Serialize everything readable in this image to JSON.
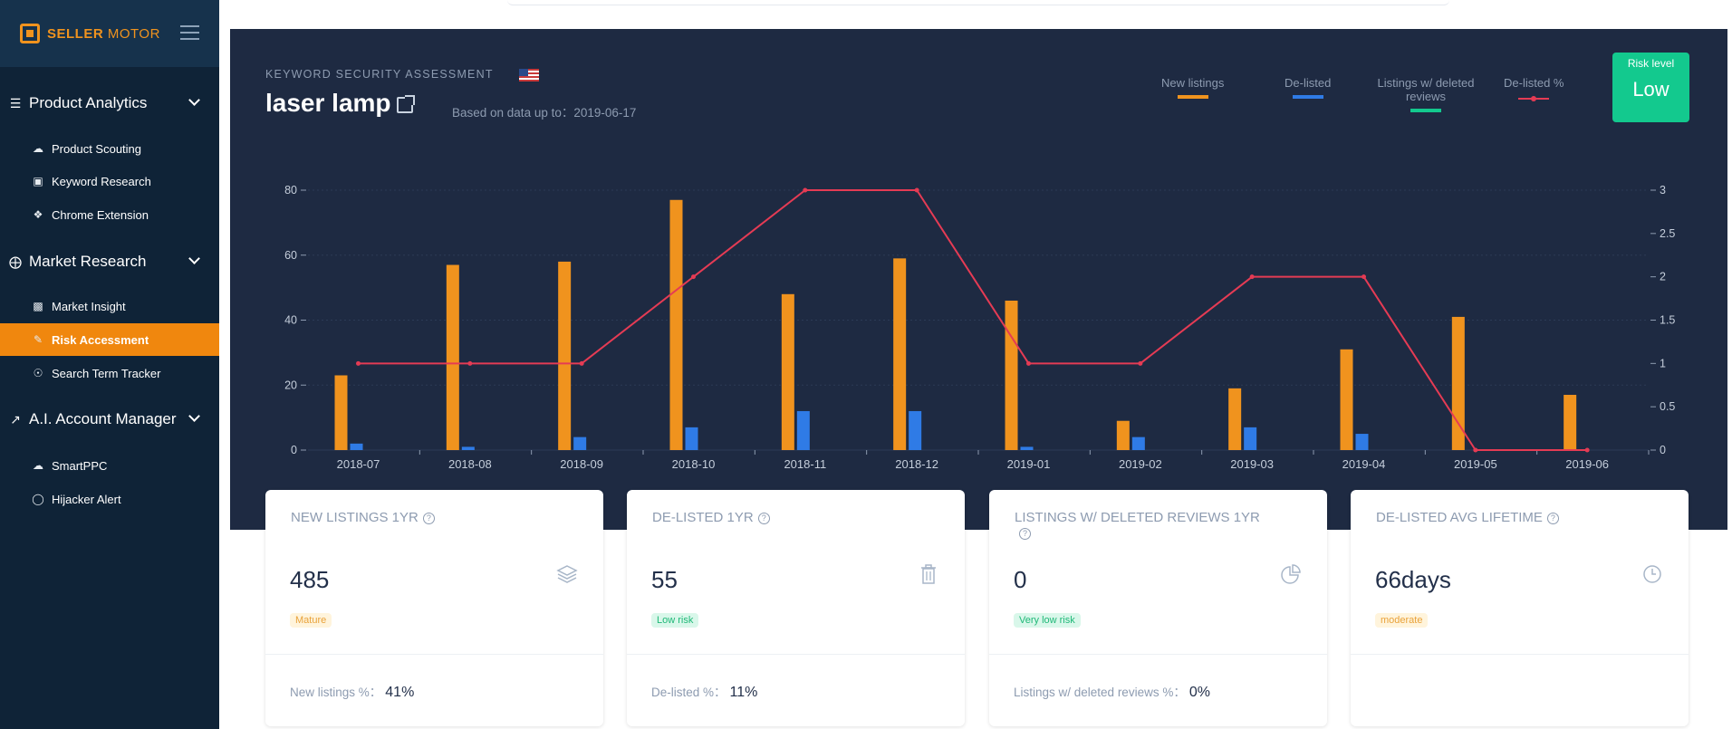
{
  "brand": {
    "name_part1": "SELLER",
    "name_part2": "MOTOR"
  },
  "sidebar": {
    "sections": [
      {
        "label": "Product Analytics",
        "icon": "list-search-icon",
        "items": [
          {
            "label": "Product Scouting",
            "icon": "cloud-search-icon"
          },
          {
            "label": "Keyword Research",
            "icon": "image-search-icon"
          },
          {
            "label": "Chrome Extension",
            "icon": "puzzle-icon"
          }
        ]
      },
      {
        "label": "Market Research",
        "icon": "compass-icon",
        "items": [
          {
            "label": "Market Insight",
            "icon": "bar-chart-icon"
          },
          {
            "label": "Risk Accessment",
            "icon": "edit-square-icon",
            "active": true
          },
          {
            "label": "Search Term Tracker",
            "icon": "tracker-icon"
          }
        ]
      },
      {
        "label": "A.I. Account Manager",
        "icon": "trend-up-icon",
        "items": [
          {
            "label": "SmartPPC",
            "icon": "cloud-icon"
          },
          {
            "label": "Hijacker Alert",
            "icon": "alert-icon"
          }
        ]
      }
    ]
  },
  "header": {
    "caption": "KEYWORD SECURITY ASSESSMENT",
    "keyword": "laser lamp",
    "based_on": "Based on data up to：2019-06-17"
  },
  "legend": [
    {
      "label": "New listings",
      "color": "#f0931e",
      "type": "bar"
    },
    {
      "label": "De-listed",
      "color": "#2f7be6",
      "type": "bar"
    },
    {
      "label": "Listings w/ deleted reviews",
      "color": "#13c98e",
      "type": "bar"
    },
    {
      "label": "De-listed %",
      "color": "#e53b54",
      "type": "line"
    }
  ],
  "risk": {
    "label": "Risk level",
    "value": "Low",
    "color": "#13c98e"
  },
  "chart_data": {
    "type": "bar",
    "categories": [
      "2018-07",
      "2018-08",
      "2018-09",
      "2018-10",
      "2018-11",
      "2018-12",
      "2019-01",
      "2019-02",
      "2019-03",
      "2019-04",
      "2019-05",
      "2019-06"
    ],
    "series": [
      {
        "name": "New listings",
        "type": "bar",
        "axis": "left",
        "color": "#f0931e",
        "values": [
          23,
          57,
          58,
          77,
          48,
          59,
          46,
          9,
          19,
          31,
          41,
          17
        ]
      },
      {
        "name": "De-listed",
        "type": "bar",
        "axis": "left",
        "color": "#2f7be6",
        "values": [
          2,
          1,
          4,
          7,
          12,
          12,
          1,
          4,
          7,
          5,
          0,
          0
        ]
      },
      {
        "name": "Listings w/ deleted reviews",
        "type": "bar",
        "axis": "left",
        "color": "#13c98e",
        "values": [
          0,
          0,
          0,
          0,
          0,
          0,
          0,
          0,
          0,
          0,
          0,
          0
        ]
      },
      {
        "name": "De-listed %",
        "type": "line",
        "axis": "right",
        "color": "#e53b54",
        "values": [
          1,
          1,
          1,
          2,
          3,
          3,
          1,
          1,
          2,
          2,
          0,
          0
        ]
      }
    ],
    "y_left": {
      "min": 0,
      "max": 80,
      "ticks": [
        0,
        20,
        40,
        60,
        80
      ]
    },
    "y_right": {
      "min": 0,
      "max": 3,
      "ticks": [
        "0",
        "0.5",
        "1",
        "1.5",
        "2",
        "2.5",
        "3"
      ]
    },
    "grid": true
  },
  "cards": [
    {
      "title": "NEW LISTINGS 1YR",
      "value": "485",
      "icon": "layers-icon",
      "badge": "Mature",
      "badge_type": "mature",
      "foot_label": "New listings %：",
      "foot_value": "41%"
    },
    {
      "title": "DE-LISTED 1YR",
      "value": "55",
      "icon": "trash-icon",
      "badge": "Low risk",
      "badge_type": "low",
      "foot_label": "De-listed %：",
      "foot_value": "11%"
    },
    {
      "title": "LISTINGS W/ DELETED REVIEWS 1YR",
      "value": "0",
      "icon": "pie-icon",
      "badge": "Very low risk",
      "badge_type": "vlow",
      "foot_label": "Listings w/ deleted reviews %：",
      "foot_value": "0%"
    },
    {
      "title": "DE-LISTED AVG LIFETIME",
      "value": "66days",
      "icon": "clock-icon",
      "badge": "moderate",
      "badge_type": "moderate",
      "foot_label": "",
      "foot_value": ""
    }
  ]
}
